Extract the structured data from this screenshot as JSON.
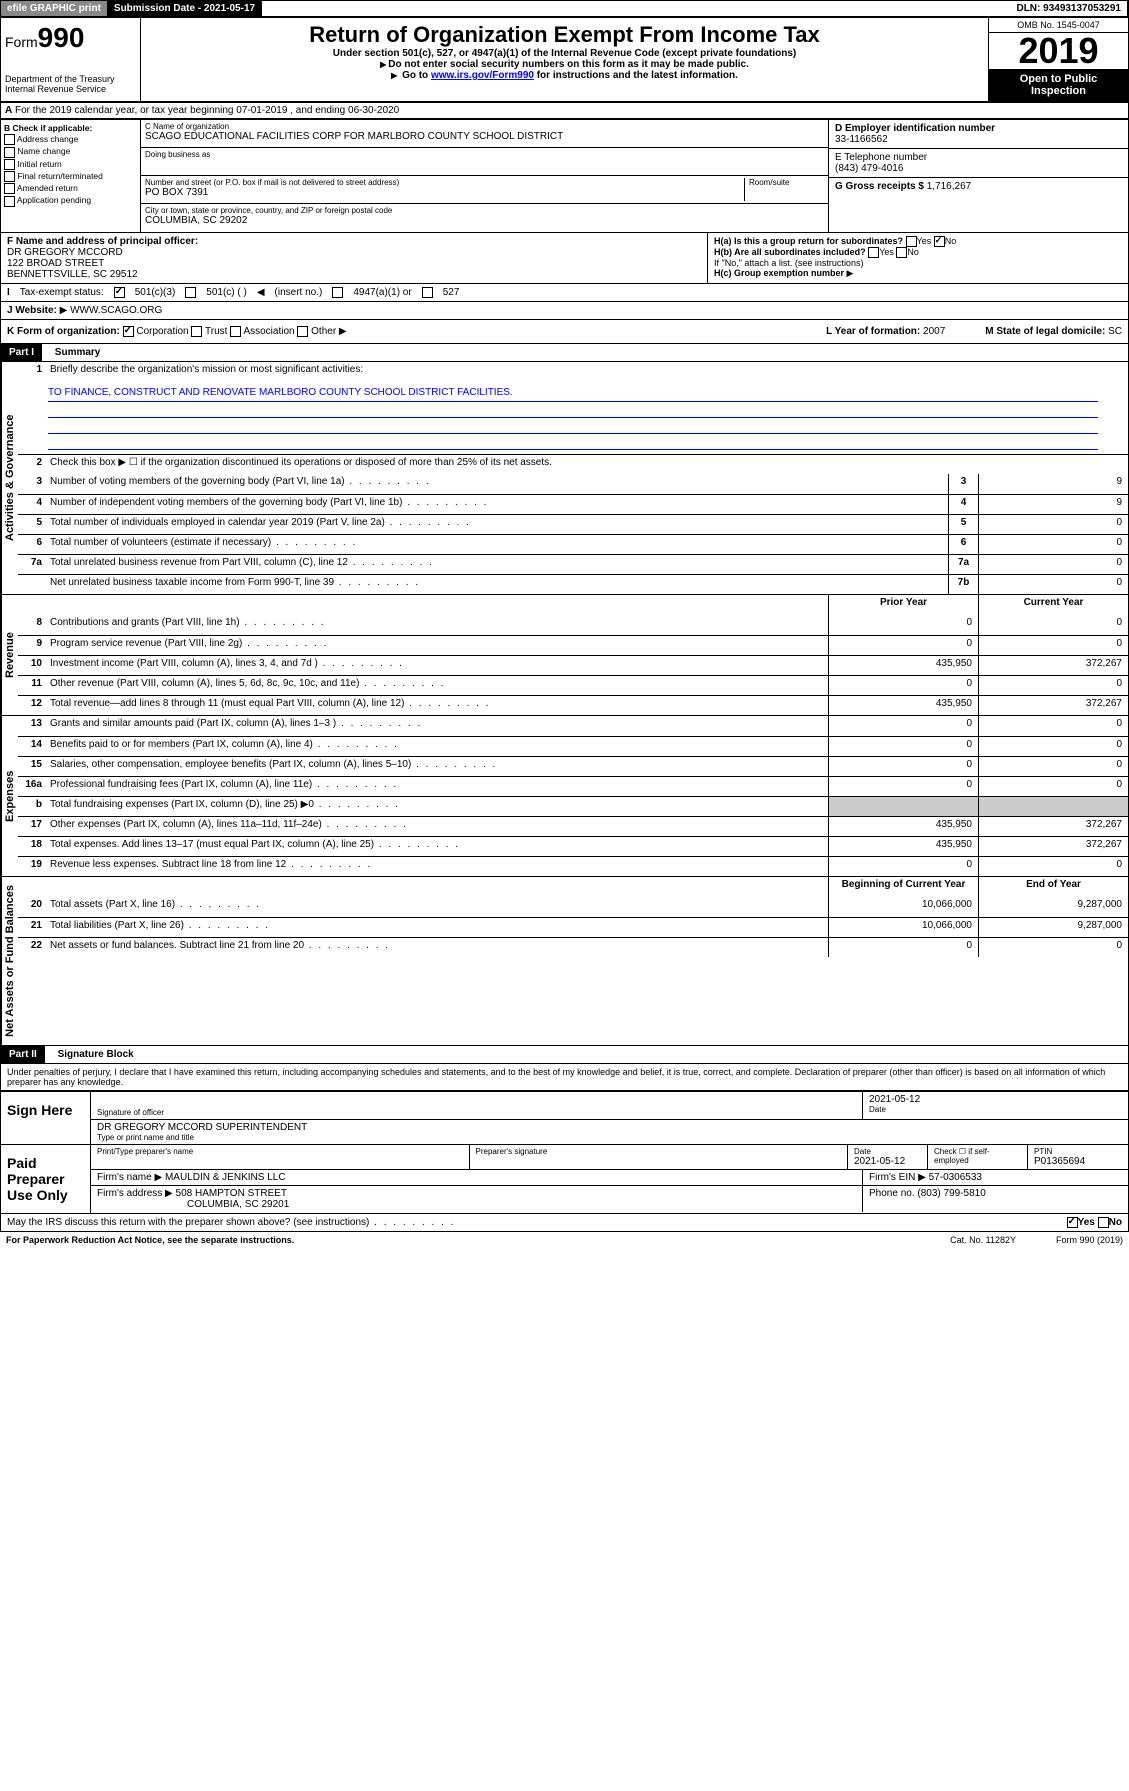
{
  "top": {
    "efile": "efile GRAPHIC print",
    "submission": "Submission Date - 2021-05-17",
    "dln": "DLN: 93493137053291"
  },
  "header": {
    "form_prefix": "Form",
    "form_num": "990",
    "dept": "Department of the Treasury\nInternal Revenue Service",
    "title": "Return of Organization Exempt From Income Tax",
    "sub1": "Under section 501(c), 527, or 4947(a)(1) of the Internal Revenue Code (except private foundations)",
    "sub2": "Do not enter social security numbers on this form as it may be made public.",
    "sub3_a": "Go to ",
    "sub3_link": "www.irs.gov/Form990",
    "sub3_b": " for instructions and the latest information.",
    "omb": "OMB No. 1545-0047",
    "year": "2019",
    "open": "Open to Public Inspection"
  },
  "a": {
    "text": "For the 2019 calendar year, or tax year beginning 07-01-2019    , and ending 06-30-2020"
  },
  "b": {
    "label": "B Check if applicable:",
    "opts": [
      "Address change",
      "Name change",
      "Initial return",
      "Final return/terminated",
      "Amended return",
      "Application pending"
    ]
  },
  "c": {
    "name_lbl": "C Name of organization",
    "name": "SCAGO EDUCATIONAL FACILITIES CORP FOR MARLBORO COUNTY SCHOOL DISTRICT",
    "dba_lbl": "Doing business as",
    "dba": "",
    "addr_lbl": "Number and street (or P.O. box if mail is not delivered to street address)",
    "room_lbl": "Room/suite",
    "addr": "PO BOX 7391",
    "city_lbl": "City or town, state or province, country, and ZIP or foreign postal code",
    "city": "COLUMBIA, SC  29202"
  },
  "d": {
    "lbl": "D Employer identification number",
    "val": "33-1166562"
  },
  "e": {
    "lbl": "E Telephone number",
    "val": "(843) 479-4016"
  },
  "g": {
    "lbl": "G Gross receipts $",
    "val": "1,716,267"
  },
  "f": {
    "lbl": "F  Name and address of principal officer:",
    "name": "DR GREGORY MCCORD",
    "addr1": "122 BROAD STREET",
    "addr2": "BENNETTSVILLE, SC  29512"
  },
  "h": {
    "a_lbl": "H(a)  Is this a group return for subordinates?",
    "a_yes": "Yes",
    "a_no": "No",
    "b_lbl": "H(b)  Are all subordinates included?",
    "b_yes": "Yes",
    "b_no": "No",
    "b_note": "If \"No,\" attach a list. (see instructions)",
    "c_lbl": "H(c)  Group exemption number"
  },
  "tax": {
    "lbl": "Tax-exempt status:",
    "o1": "501(c)(3)",
    "o2": "501(c) (  )",
    "o2b": "(insert no.)",
    "o3": "4947(a)(1) or",
    "o4": "527"
  },
  "web": {
    "lbl": "Website:",
    "val": "WWW.SCAGO.ORG"
  },
  "k": {
    "lbl": "K Form of organization:",
    "o1": "Corporation",
    "o2": "Trust",
    "o3": "Association",
    "o4": "Other",
    "l_lbl": "L Year of formation:",
    "l_val": "2007",
    "m_lbl": "M State of legal domicile:",
    "m_val": "SC"
  },
  "part1": {
    "hdr": "Part I",
    "title": "Summary",
    "tab_ag": "Activities & Governance",
    "tab_rev": "Revenue",
    "tab_exp": "Expenses",
    "tab_net": "Net Assets or Fund Balances",
    "l1_lbl": "Briefly describe the organization's mission or most significant activities:",
    "l1_val": "TO FINANCE, CONSTRUCT AND RENOVATE MARLBORO COUNTY SCHOOL DISTRICT FACILITIES.",
    "l2": "Check this box ▶ ☐  if the organization discontinued its operations or disposed of more than 25% of its net assets.",
    "rows_ag": [
      {
        "n": "3",
        "d": "Number of voting members of the governing body (Part VI, line 1a)",
        "b": "3",
        "v": "9"
      },
      {
        "n": "4",
        "d": "Number of independent voting members of the governing body (Part VI, line 1b)",
        "b": "4",
        "v": "9"
      },
      {
        "n": "5",
        "d": "Total number of individuals employed in calendar year 2019 (Part V, line 2a)",
        "b": "5",
        "v": "0"
      },
      {
        "n": "6",
        "d": "Total number of volunteers (estimate if necessary)",
        "b": "6",
        "v": "0"
      },
      {
        "n": "7a",
        "d": "Total unrelated business revenue from Part VIII, column (C), line 12",
        "b": "7a",
        "v": "0"
      },
      {
        "n": "",
        "d": "Net unrelated business taxable income from Form 990-T, line 39",
        "b": "7b",
        "v": "0"
      }
    ],
    "col_prior": "Prior Year",
    "col_curr": "Current Year",
    "rows_rev": [
      {
        "n": "8",
        "d": "Contributions and grants (Part VIII, line 1h)",
        "p": "0",
        "c": "0"
      },
      {
        "n": "9",
        "d": "Program service revenue (Part VIII, line 2g)",
        "p": "0",
        "c": "0"
      },
      {
        "n": "10",
        "d": "Investment income (Part VIII, column (A), lines 3, 4, and 7d )",
        "p": "435,950",
        "c": "372,267"
      },
      {
        "n": "11",
        "d": "Other revenue (Part VIII, column (A), lines 5, 6d, 8c, 9c, 10c, and 11e)",
        "p": "0",
        "c": "0"
      },
      {
        "n": "12",
        "d": "Total revenue—add lines 8 through 11 (must equal Part VIII, column (A), line 12)",
        "p": "435,950",
        "c": "372,267"
      }
    ],
    "rows_exp": [
      {
        "n": "13",
        "d": "Grants and similar amounts paid (Part IX, column (A), lines 1–3 )",
        "p": "0",
        "c": "0"
      },
      {
        "n": "14",
        "d": "Benefits paid to or for members (Part IX, column (A), line 4)",
        "p": "0",
        "c": "0"
      },
      {
        "n": "15",
        "d": "Salaries, other compensation, employee benefits (Part IX, column (A), lines 5–10)",
        "p": "0",
        "c": "0"
      },
      {
        "n": "16a",
        "d": "Professional fundraising fees (Part IX, column (A), line 11e)",
        "p": "0",
        "c": "0"
      },
      {
        "n": "b",
        "d": "Total fundraising expenses (Part IX, column (D), line 25) ▶0",
        "p": "",
        "c": "",
        "shade": true
      },
      {
        "n": "17",
        "d": "Other expenses (Part IX, column (A), lines 11a–11d, 11f–24e)",
        "p": "435,950",
        "c": "372,267"
      },
      {
        "n": "18",
        "d": "Total expenses. Add lines 13–17 (must equal Part IX, column (A), line 25)",
        "p": "435,950",
        "c": "372,267"
      },
      {
        "n": "19",
        "d": "Revenue less expenses. Subtract line 18 from line 12",
        "p": "0",
        "c": "0"
      }
    ],
    "col_beg": "Beginning of Current Year",
    "col_end": "End of Year",
    "rows_net": [
      {
        "n": "20",
        "d": "Total assets (Part X, line 16)",
        "p": "10,066,000",
        "c": "9,287,000"
      },
      {
        "n": "21",
        "d": "Total liabilities (Part X, line 26)",
        "p": "10,066,000",
        "c": "9,287,000"
      },
      {
        "n": "22",
        "d": "Net assets or fund balances. Subtract line 21 from line 20",
        "p": "0",
        "c": "0"
      }
    ]
  },
  "part2": {
    "hdr": "Part II",
    "title": "Signature Block",
    "decl": "Under penalties of perjury, I declare that I have examined this return, including accompanying schedules and statements, and to the best of my knowledge and belief, it is true, correct, and complete. Declaration of preparer (other than officer) is based on all information of which preparer has any knowledge.",
    "sign_here": "Sign Here",
    "sig_officer_lbl": "Signature of officer",
    "sig_date": "2021-05-12",
    "date_lbl": "Date",
    "officer_name": "DR GREGORY MCCORD  SUPERINTENDENT",
    "officer_name_lbl": "Type or print name and title",
    "paid": "Paid Preparer Use Only",
    "prep_name_lbl": "Print/Type preparer's name",
    "prep_sig_lbl": "Preparer's signature",
    "prep_date_lbl": "Date",
    "prep_date": "2021-05-12",
    "prep_check_lbl": "Check ☐ if self-employed",
    "ptin_lbl": "PTIN",
    "ptin": "P01365694",
    "firm_name_lbl": "Firm's name    ▶",
    "firm_name": "MAULDIN & JENKINS LLC",
    "firm_ein_lbl": "Firm's EIN ▶",
    "firm_ein": "57-0306533",
    "firm_addr_lbl": "Firm's address ▶",
    "firm_addr1": "508 HAMPTON STREET",
    "firm_addr2": "COLUMBIA, SC  29201",
    "phone_lbl": "Phone no.",
    "phone": "(803) 799-5810",
    "discuss": "May the IRS discuss this return with the preparer shown above? (see instructions)",
    "yes": "Yes",
    "no": "No"
  },
  "footer": {
    "left": "For Paperwork Reduction Act Notice, see the separate instructions.",
    "mid": "Cat. No. 11282Y",
    "right": "Form 990 (2019)"
  }
}
